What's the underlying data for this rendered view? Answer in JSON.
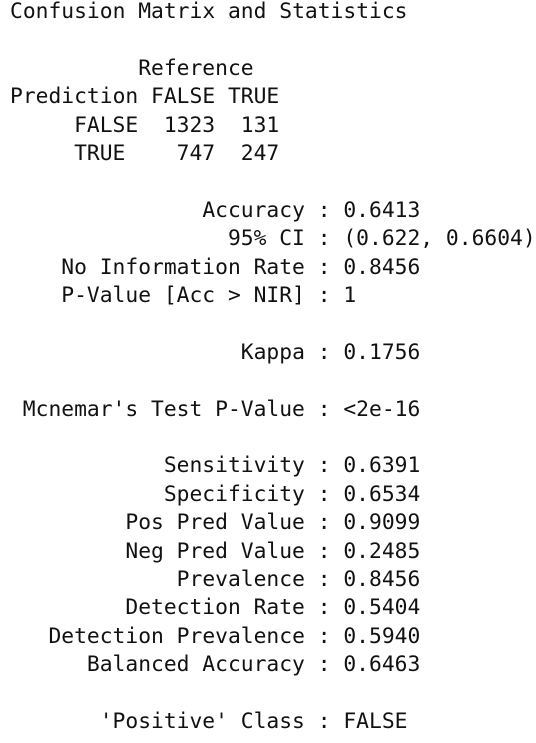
{
  "title": "Confusion Matrix and Statistics",
  "matrix": {
    "column_header": "Reference",
    "row_header": "Prediction",
    "columns": [
      "FALSE",
      "TRUE"
    ],
    "rows": [
      {
        "label": "FALSE",
        "values": [
          1323,
          131
        ]
      },
      {
        "label": "TRUE",
        "values": [
          747,
          247
        ]
      }
    ]
  },
  "separator": ":",
  "stats": [
    [
      {
        "label": "Accuracy",
        "value": "0.6413"
      },
      {
        "label": "95% CI",
        "value": "(0.622, 0.6604)"
      },
      {
        "label": "No Information Rate",
        "value": "0.8456"
      },
      {
        "label": "P-Value [Acc > NIR]",
        "value": "1"
      }
    ],
    [
      {
        "label": "Kappa",
        "value": "0.1756"
      }
    ],
    [
      {
        "label": "Mcnemar's Test P-Value",
        "value": "<2e-16"
      }
    ],
    [
      {
        "label": "Sensitivity",
        "value": "0.6391"
      },
      {
        "label": "Specificity",
        "value": "0.6534"
      },
      {
        "label": "Pos Pred Value",
        "value": "0.9099"
      },
      {
        "label": "Neg Pred Value",
        "value": "0.2485"
      },
      {
        "label": "Prevalence",
        "value": "0.8456"
      },
      {
        "label": "Detection Rate",
        "value": "0.5404"
      },
      {
        "label": "Detection Prevalence",
        "value": "0.5940"
      },
      {
        "label": "Balanced Accuracy",
        "value": "0.6463"
      }
    ],
    [
      {
        "label": "'Positive' Class",
        "value": "FALSE"
      }
    ]
  ]
}
